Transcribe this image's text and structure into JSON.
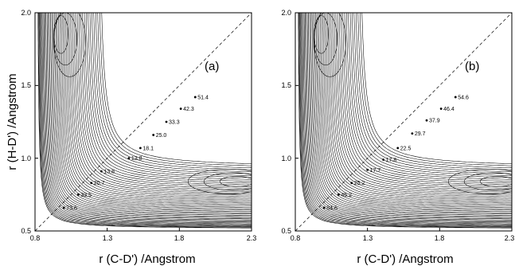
{
  "chart_data": [
    {
      "type": "contour",
      "panel_label": "(a)",
      "xlabel": "r (C-D') /Angstrom",
      "ylabel": "r (H-D') /Angstrom",
      "xlim": [
        0.8,
        2.3
      ],
      "ylim": [
        0.5,
        2.0
      ],
      "xticks": [
        "0.8",
        "1.3",
        "1.8",
        "2.3"
      ],
      "yticks": [
        "0.5",
        "1.0",
        "1.5",
        "2.0"
      ],
      "diagonal": "dashed y = x",
      "contour_labels": [
        {
          "text": "73.6",
          "x": 1.0,
          "y": 0.66
        },
        {
          "text": "33.5",
          "x": 1.1,
          "y": 0.75
        },
        {
          "text": "20.7",
          "x": 1.19,
          "y": 0.83
        },
        {
          "text": "13.8",
          "x": 1.26,
          "y": 0.91
        },
        {
          "text": "13.8",
          "x": 1.45,
          "y": 1.0
        },
        {
          "text": "18.1",
          "x": 1.53,
          "y": 1.07
        },
        {
          "text": "25.0",
          "x": 1.62,
          "y": 1.16
        },
        {
          "text": "33.3",
          "x": 1.71,
          "y": 1.25
        },
        {
          "text": "42.3",
          "x": 1.81,
          "y": 1.34
        },
        {
          "text": "51.4",
          "x": 1.91,
          "y": 1.42
        }
      ]
    },
    {
      "type": "contour",
      "panel_label": "(b)",
      "xlabel": "r (C-D') /Angstrom",
      "ylabel": "",
      "xlim": [
        0.8,
        2.3
      ],
      "ylim": [
        0.5,
        2.0
      ],
      "xticks": [
        "0.8",
        "1.3",
        "1.8",
        "2.3"
      ],
      "yticks": [
        "0.5",
        "1.0",
        "1.5",
        "2.0"
      ],
      "diagonal": "dashed y = x",
      "contour_labels": [
        {
          "text": "84.6",
          "x": 1.0,
          "y": 0.66
        },
        {
          "text": "45.2",
          "x": 1.1,
          "y": 0.75
        },
        {
          "text": "25.2",
          "x": 1.19,
          "y": 0.83
        },
        {
          "text": "17.7",
          "x": 1.3,
          "y": 0.92
        },
        {
          "text": "17.8",
          "x": 1.41,
          "y": 0.99
        },
        {
          "text": "22.5",
          "x": 1.51,
          "y": 1.07
        },
        {
          "text": "29.7",
          "x": 1.61,
          "y": 1.17
        },
        {
          "text": "37.9",
          "x": 1.71,
          "y": 1.26
        },
        {
          "text": "46.4",
          "x": 1.81,
          "y": 1.34
        },
        {
          "text": "54.6",
          "x": 1.91,
          "y": 1.42
        }
      ]
    }
  ]
}
